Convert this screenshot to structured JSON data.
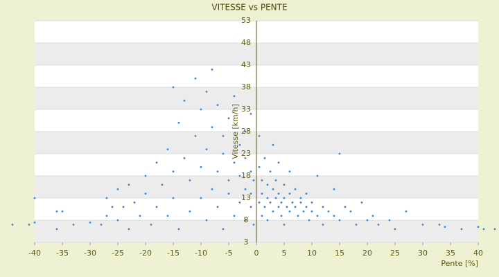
{
  "chart_data": {
    "type": "scatter",
    "title": "VITESSE vs PENTE",
    "x_label": "Pente [%]",
    "y_label": "Vitesse [km/h]",
    "color": "#3a87d6",
    "xlim": [
      -40,
      40
    ],
    "ylim": [
      3,
      53
    ],
    "xticks": [
      -40,
      -35,
      -30,
      -25,
      -20,
      -15,
      -10,
      -5,
      0,
      5,
      10,
      15,
      20,
      25,
      30,
      35,
      40
    ],
    "yticks": [
      3,
      8,
      13,
      18,
      23,
      28,
      33,
      38,
      43,
      48,
      53
    ],
    "grid": true,
    "x": [
      -44,
      -41,
      -40,
      -40,
      -36,
      -36,
      -35,
      -33,
      -30,
      -28,
      -27,
      -27,
      -26,
      -25,
      -25,
      -24,
      -23,
      -23,
      -22,
      -21,
      -20,
      -20,
      -19,
      -18,
      -18,
      -17,
      -16,
      -16,
      -15,
      -15,
      -15,
      -14,
      -14,
      -13,
      -13,
      -12,
      -12,
      -11,
      -11,
      -10,
      -10,
      -10,
      -9,
      -9,
      -9,
      -8,
      -8,
      -8,
      -7,
      -7,
      -7,
      -6,
      -6,
      -6,
      -5,
      -5,
      -5,
      -4,
      -4,
      -4,
      -3,
      -3,
      -3,
      -2,
      -2,
      -2,
      -2,
      -1,
      -1,
      -1,
      -1,
      -0.5,
      -0.5,
      0.5,
      0.5,
      0.5,
      1,
      1,
      1,
      1.5,
      1.5,
      2,
      2,
      2,
      2.5,
      2.5,
      3,
      3,
      3,
      3.5,
      3.5,
      4,
      4,
      4,
      4.5,
      4.5,
      5,
      5,
      5,
      5.5,
      6,
      6,
      6,
      6.5,
      7,
      7,
      7.5,
      8,
      8,
      8.5,
      9,
      9,
      9.5,
      10,
      10,
      11,
      11,
      12,
      12,
      13,
      14,
      14,
      15,
      15,
      16,
      17,
      18,
      19,
      20,
      21,
      22,
      24,
      25,
      27,
      30,
      33,
      34,
      37,
      40,
      41,
      43
    ],
    "values": [
      7,
      7,
      13,
      7.5,
      10,
      6,
      10,
      7,
      7.5,
      7,
      13,
      9,
      11,
      8,
      15,
      11,
      16,
      6,
      12,
      9,
      14,
      18,
      7,
      11,
      21,
      16,
      9,
      24,
      38,
      13,
      19,
      30,
      6,
      22,
      35,
      17,
      10,
      27,
      40,
      13,
      33,
      20,
      8,
      37,
      24,
      15,
      42,
      29,
      11,
      19,
      34,
      6,
      23,
      27,
      14,
      31,
      17,
      9,
      21,
      36,
      12,
      25,
      18,
      8,
      15,
      28,
      22,
      11,
      19,
      32,
      14,
      7,
      17,
      12,
      20,
      27,
      9,
      14,
      17,
      11,
      22,
      13,
      16,
      8,
      19,
      12,
      10,
      15,
      25,
      13,
      17,
      11,
      14,
      21,
      9,
      12,
      13,
      16,
      7,
      11,
      14,
      10,
      19,
      12,
      11,
      15,
      9,
      12,
      13,
      10,
      11,
      14,
      8,
      12,
      10,
      9,
      18,
      11,
      7,
      10,
      9,
      15,
      23,
      8,
      11,
      10,
      7,
      12,
      8,
      9,
      7,
      8,
      6,
      10,
      7,
      7,
      6.5,
      6,
      6.5,
      6,
      6
    ]
  }
}
